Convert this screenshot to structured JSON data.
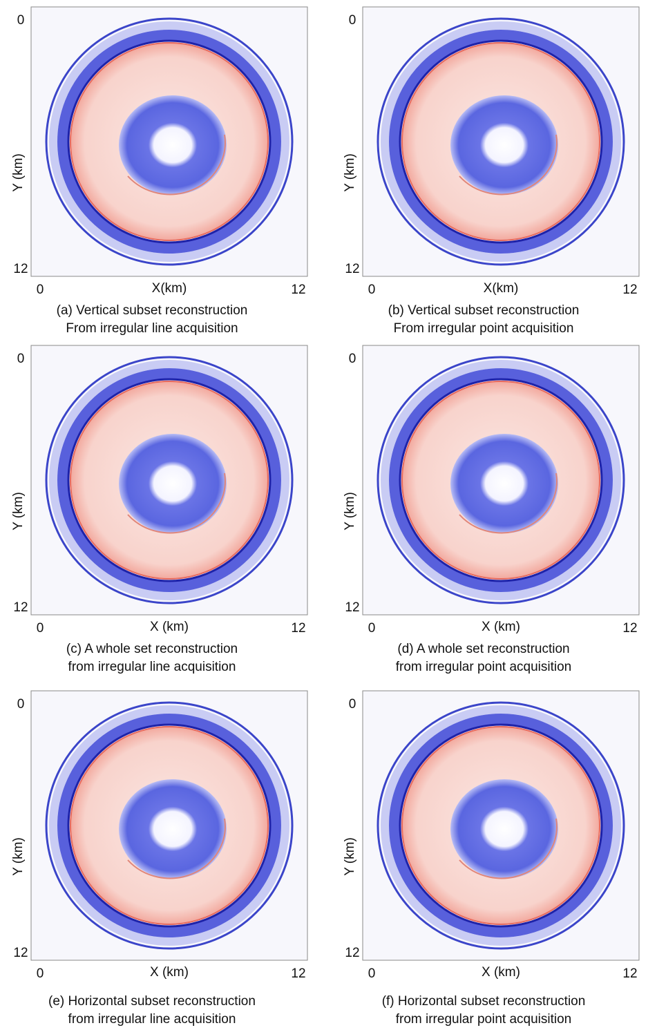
{
  "panels": [
    {
      "caption": [
        "(a) Vertical subset reconstruction",
        "From irregular line acquisition"
      ],
      "x_label": "X(km)",
      "y_label": "Y (km)",
      "x_ticks": [
        0,
        12
      ],
      "y_ticks": [
        0,
        12
      ]
    },
    {
      "caption": [
        "(b) Vertical subset reconstruction",
        "From irregular point acquisition"
      ],
      "x_label": "X(km)",
      "y_label": "Y (km)",
      "x_ticks": [
        0,
        12
      ],
      "y_ticks": [
        0,
        12
      ]
    },
    {
      "caption": [
        "(c) A whole set reconstruction",
        "from irregular line acquisition"
      ],
      "x_label": "X (km)",
      "y_label": "Y (km)",
      "x_ticks": [
        0,
        12
      ],
      "y_ticks": [
        0,
        12
      ]
    },
    {
      "caption": [
        "(d) A whole set reconstruction",
        "from irregular point acquisition"
      ],
      "x_label": "X (km)",
      "y_label": "Y (km)",
      "x_ticks": [
        0,
        12
      ],
      "y_ticks": [
        0,
        12
      ]
    },
    {
      "caption": [
        "(e) Horizontal subset reconstruction",
        "from irregular line acquisition"
      ],
      "x_label": "X (km)",
      "y_label": "Y (km)",
      "x_ticks": [
        0,
        12
      ],
      "y_ticks": [
        0,
        12
      ]
    },
    {
      "caption": [
        "(f) Horizontal subset reconstruction",
        "from irregular point acquisition"
      ],
      "x_label": "X (km)",
      "y_label": "Y (km)",
      "x_ticks": [
        0,
        12
      ],
      "y_ticks": [
        0,
        12
      ]
    }
  ]
}
